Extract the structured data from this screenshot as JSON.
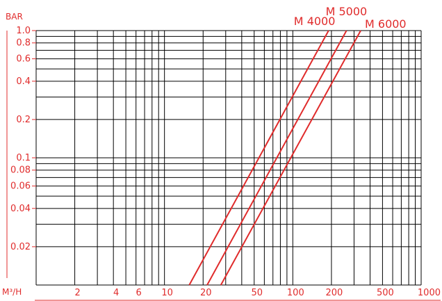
{
  "chart_data": {
    "type": "line",
    "title": "",
    "xlabel": "M³/H",
    "ylabel": "BAR",
    "x_scale": "log",
    "y_scale": "log",
    "xlim": [
      1,
      1000
    ],
    "ylim": [
      0.01,
      1.0
    ],
    "grid": true,
    "x_tick_labels": [
      {
        "value": 2,
        "label": "2"
      },
      {
        "value": 4,
        "label": "4"
      },
      {
        "value": 6,
        "label": "6"
      },
      {
        "value": 10,
        "label": "10"
      },
      {
        "value": 20,
        "label": "20"
      },
      {
        "value": 50,
        "label": "50"
      },
      {
        "value": 100,
        "label": "100"
      },
      {
        "value": 200,
        "label": "200"
      },
      {
        "value": 500,
        "label": "500"
      },
      {
        "value": 1000,
        "label": "1000"
      }
    ],
    "y_tick_labels": [
      {
        "value": 1.0,
        "label": "1.0"
      },
      {
        "value": 0.8,
        "label": "0.8"
      },
      {
        "value": 0.6,
        "label": "0.6"
      },
      {
        "value": 0.4,
        "label": "0.4"
      },
      {
        "value": 0.2,
        "label": "0.2"
      },
      {
        "value": 0.1,
        "label": "0.1"
      },
      {
        "value": 0.08,
        "label": "0.08"
      },
      {
        "value": 0.06,
        "label": "0.06"
      },
      {
        "value": 0.04,
        "label": "0.04"
      },
      {
        "value": 0.02,
        "label": "0.02"
      }
    ],
    "series": [
      {
        "name": "M 4000",
        "points": [
          [
            15.6,
            0.01
          ],
          [
            190,
            1.0
          ]
        ]
      },
      {
        "name": "M 5000",
        "points": [
          [
            21.5,
            0.01
          ],
          [
            262,
            1.0
          ]
        ]
      },
      {
        "name": "M 6000",
        "points": [
          [
            27.5,
            0.01
          ],
          [
            338,
            1.0
          ]
        ]
      }
    ]
  },
  "colors": {
    "accent": "#e02b2b",
    "grid": "#000000",
    "background": "#ffffff"
  }
}
